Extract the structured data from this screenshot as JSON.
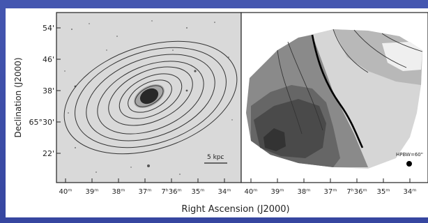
{
  "figure": {
    "ylabel": "Declination (J2000)",
    "xlabel": "Right Ascension (J2000)",
    "y_ticks": [
      "54'",
      "46'",
      "38'",
      "65°30'",
      "22'"
    ],
    "x_ticks_left": [
      "40ᵐ",
      "39ᵐ",
      "38ᵐ",
      "37ᵐ",
      "7ʰ36ᵐ",
      "35ᵐ",
      "34ᵐ"
    ],
    "x_ticks_right": [
      "40ᵐ",
      "39ᵐ",
      "38ᵐ",
      "37ᵐ",
      "7ʰ36ᵐ",
      "35ᵐ",
      "34ᵐ"
    ],
    "scale_bar_label": "5 kpc",
    "beam_label": "HPBW=60\""
  },
  "colors": {
    "slide_background": "#3b4aa0",
    "panel_left_background": "#d9d9d9",
    "contour_stroke": "#333333",
    "field_light": "#d6d6d6",
    "field_dark": "#3a3a3a"
  }
}
